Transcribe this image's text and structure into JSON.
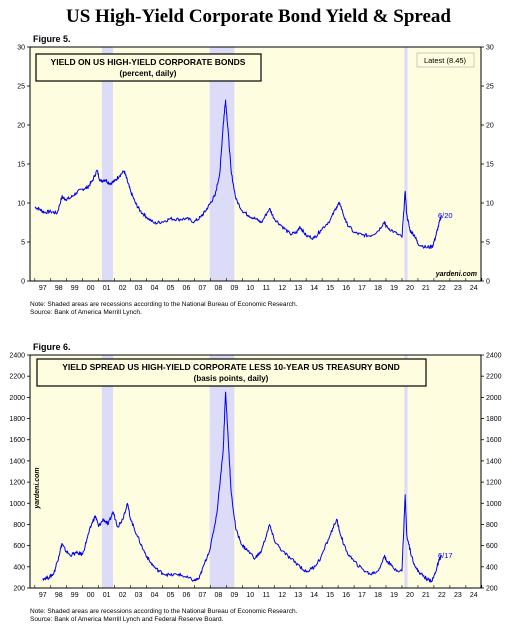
{
  "page": {
    "title": "US High-Yield Corporate Bond Yield & Spread"
  },
  "colors": {
    "background_panel": "#fffde0",
    "recession_shade": "#dcdcf8",
    "line": "#0000ee",
    "text": "#000000"
  },
  "chart_data": [
    {
      "type": "line",
      "figure_label": "Figure 5.",
      "title": "YIELD ON US HIGH-YIELD CORPORATE BONDS",
      "subtitle": "(percent, daily)",
      "legend_text": "Latest (8.45)",
      "end_label": "6/20",
      "watermark": "yardeni.com",
      "ylim": [
        0,
        30
      ],
      "yticks": [
        "0",
        "5",
        "10",
        "15",
        "20",
        "25",
        "30"
      ],
      "xticks": [
        "97",
        "98",
        "99",
        "00",
        "01",
        "02",
        "03",
        "04",
        "05",
        "06",
        "07",
        "08",
        "09",
        "10",
        "11",
        "12",
        "13",
        "14",
        "15",
        "16",
        "17",
        "18",
        "19",
        "20",
        "21",
        "22",
        "23",
        "24"
      ],
      "recessions": [
        [
          2001.2,
          2001.9
        ],
        [
          2007.95,
          2009.5
        ],
        [
          2020.15,
          2020.35
        ]
      ],
      "grid": false,
      "notes": [
        "Note: Shaded areas are recessions according to the National Bureau of Economic Research.",
        "Source: Bank of America Merrill Lynch."
      ],
      "series": [
        {
          "x": [
            1997.0,
            1997.3,
            1997.6,
            1998.0,
            1998.4,
            1998.7,
            1998.9,
            1999.2,
            1999.6,
            2000.0,
            2000.3,
            2000.6,
            2000.9,
            2001.1,
            2001.4,
            2001.7,
            2002.0,
            2002.3,
            2002.6,
            2002.8,
            2003.0,
            2003.3,
            2003.6,
            2004.0,
            2004.5,
            2005.0,
            2005.5,
            2006.0,
            2006.5,
            2007.0,
            2007.4,
            2007.7,
            2008.0,
            2008.3,
            2008.6,
            2008.8,
            2008.95,
            2009.1,
            2009.3,
            2009.6,
            2010.0,
            2010.4,
            2010.8,
            2011.2,
            2011.7,
            2012.0,
            2012.5,
            2013.0,
            2013.4,
            2013.6,
            2014.0,
            2014.5,
            2014.9,
            2015.5,
            2015.9,
            2016.1,
            2016.5,
            2017.0,
            2017.5,
            2018.0,
            2018.5,
            2018.9,
            2019.0,
            2019.5,
            2020.0,
            2020.2,
            2020.3,
            2020.5,
            2020.8,
            2021.0,
            2021.5,
            2021.9,
            2022.1,
            2022.3,
            2022.47
          ],
          "y": [
            9.5,
            9.2,
            8.8,
            8.9,
            8.7,
            10.8,
            10.5,
            10.6,
            11.3,
            11.8,
            12.0,
            12.8,
            14.2,
            12.8,
            13.0,
            12.5,
            12.8,
            13.5,
            14.1,
            12.8,
            11.5,
            10.0,
            9.0,
            8.2,
            7.4,
            7.6,
            8.0,
            7.9,
            8.0,
            7.6,
            8.2,
            9.0,
            10.0,
            11.0,
            14.0,
            20.0,
            23.2,
            19.5,
            14.0,
            10.5,
            9.0,
            8.4,
            8.0,
            7.5,
            9.3,
            8.0,
            7.0,
            6.0,
            6.2,
            7.0,
            5.8,
            5.5,
            6.5,
            7.8,
            9.5,
            10.0,
            7.5,
            6.2,
            5.9,
            5.8,
            6.4,
            7.6,
            7.0,
            6.3,
            5.6,
            11.5,
            8.5,
            6.5,
            5.8,
            4.8,
            4.3,
            4.4,
            5.6,
            7.2,
            8.45
          ]
        }
      ]
    },
    {
      "type": "line",
      "figure_label": "Figure 6.",
      "title": "YIELD SPREAD US HIGH-YIELD CORPORATE LESS 10-YEAR US TREASURY BOND",
      "subtitle": "(basis points, daily)",
      "end_label": "6/17",
      "watermark": "yardeni.com",
      "ylim": [
        200,
        2400
      ],
      "yticks": [
        "200",
        "400",
        "600",
        "800",
        "1000",
        "1200",
        "1400",
        "1600",
        "1800",
        "2000",
        "2200",
        "2400"
      ],
      "xticks": [
        "97",
        "98",
        "99",
        "00",
        "01",
        "02",
        "03",
        "04",
        "05",
        "06",
        "07",
        "08",
        "09",
        "10",
        "11",
        "12",
        "13",
        "14",
        "15",
        "16",
        "17",
        "18",
        "19",
        "20",
        "21",
        "22",
        "23",
        "24"
      ],
      "recessions": [
        [
          2001.2,
          2001.9
        ],
        [
          2007.95,
          2009.5
        ],
        [
          2020.15,
          2020.35
        ]
      ],
      "grid": false,
      "notes": [
        "Note: Shaded areas are recessions according to the National Bureau of Economic Research.",
        "Source: Bank of America Merrill Lynch and Federal Reserve Board."
      ],
      "series": [
        {
          "x": [
            1997.5,
            1997.9,
            1998.2,
            1998.5,
            1998.7,
            1998.9,
            1999.2,
            1999.6,
            2000.0,
            2000.3,
            2000.6,
            2000.8,
            2001.0,
            2001.3,
            2001.6,
            2001.9,
            2002.2,
            2002.5,
            2002.8,
            2003.0,
            2003.4,
            2003.8,
            2004.2,
            2004.6,
            2005.0,
            2005.5,
            2006.0,
            2006.5,
            2007.0,
            2007.3,
            2007.6,
            2008.0,
            2008.4,
            2008.8,
            2008.95,
            2009.1,
            2009.3,
            2009.6,
            2010.0,
            2010.3,
            2010.8,
            2011.2,
            2011.7,
            2012.0,
            2012.5,
            2013.0,
            2013.5,
            2014.0,
            2014.5,
            2014.9,
            2015.5,
            2015.9,
            2016.1,
            2016.5,
            2017.0,
            2017.5,
            2018.0,
            2018.5,
            2018.9,
            2019.0,
            2019.5,
            2020.0,
            2020.2,
            2020.3,
            2020.6,
            2020.9,
            2021.2,
            2021.6,
            2021.9,
            2022.1,
            2022.3,
            2022.46
          ],
          "y": [
            290,
            300,
            340,
            500,
            620,
            560,
            510,
            530,
            520,
            680,
            820,
            880,
            780,
            850,
            800,
            920,
            780,
            850,
            1000,
            850,
            700,
            560,
            450,
            380,
            340,
            320,
            330,
            300,
            270,
            290,
            420,
            580,
            900,
            1500,
            2050,
            1650,
            1100,
            750,
            600,
            560,
            480,
            550,
            800,
            650,
            550,
            480,
            420,
            350,
            400,
            480,
            700,
            850,
            730,
            550,
            450,
            380,
            330,
            360,
            500,
            470,
            380,
            360,
            1080,
            700,
            500,
            380,
            330,
            280,
            270,
            350,
            450,
            510
          ]
        }
      ]
    }
  ]
}
